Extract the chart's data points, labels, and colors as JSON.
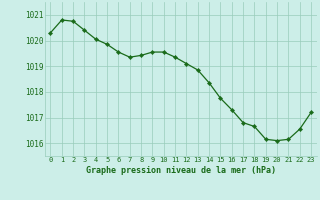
{
  "x": [
    0,
    1,
    2,
    3,
    4,
    5,
    6,
    7,
    8,
    9,
    10,
    11,
    12,
    13,
    14,
    15,
    16,
    17,
    18,
    19,
    20,
    21,
    22,
    23
  ],
  "y": [
    1020.3,
    1020.8,
    1020.75,
    1020.4,
    1020.05,
    1019.85,
    1019.55,
    1019.35,
    1019.42,
    1019.55,
    1019.55,
    1019.35,
    1019.1,
    1018.85,
    1018.35,
    1017.75,
    1017.3,
    1016.8,
    1016.65,
    1016.15,
    1016.1,
    1016.15,
    1016.55,
    1017.2
  ],
  "line_color": "#1a6b1a",
  "marker_color": "#1a6b1a",
  "bg_color": "#cceee8",
  "grid_color": "#99ccbb",
  "xlabel": "Graphe pression niveau de la mer (hPa)",
  "xlabel_color": "#1a6b1a",
  "tick_color": "#1a6b1a",
  "ylim": [
    1015.5,
    1021.5
  ],
  "yticks": [
    1016,
    1017,
    1018,
    1019,
    1020,
    1021
  ],
  "xtick_labels": [
    "0",
    "1",
    "2",
    "3",
    "4",
    "5",
    "6",
    "7",
    "8",
    "9",
    "10",
    "11",
    "12",
    "13",
    "14",
    "15",
    "16",
    "17",
    "18",
    "19",
    "20",
    "21",
    "22",
    "23"
  ]
}
